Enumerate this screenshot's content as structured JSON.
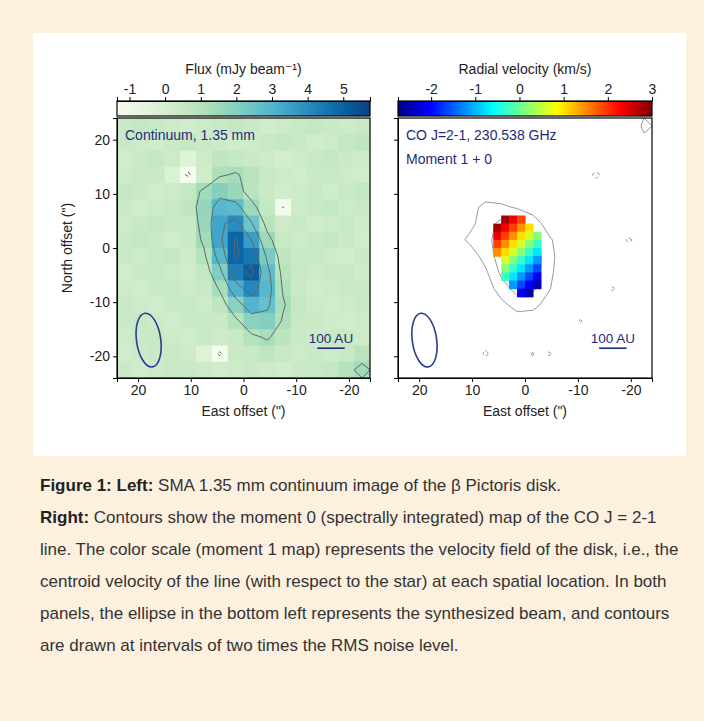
{
  "chart_data": [
    {
      "type": "heatmap",
      "color": "GnBu",
      "annotations": [
        "Continuum, 1.35 mm"
      ],
      "x_label": "East offset (\")",
      "y_label": "North offset (\")",
      "xlim": [
        24,
        -24
      ],
      "ylim": [
        -24,
        24
      ],
      "xticks": [
        20,
        10,
        0,
        -10,
        -20
      ],
      "yticks": [
        -20,
        -10,
        0,
        10,
        20
      ],
      "colorbar": {
        "label": "Flux (mJy beam⁻¹)",
        "range": [
          -1.35,
          5.75
        ],
        "ticks": [
          -1,
          0,
          1,
          2,
          3,
          4,
          5
        ]
      },
      "cells": {
        "x": [
          22.5,
          19.5,
          16.5,
          13.5,
          10.5,
          7.5,
          4.5,
          1.5,
          -1.5,
          -4.5,
          -7.5,
          -10.5,
          -13.5,
          -16.5,
          -19.5,
          -22.5
        ],
        "y": [
          22.5,
          19.5,
          16.5,
          13.5,
          10.5,
          7.5,
          4.5,
          1.5,
          -1.5,
          -4.5,
          -7.5,
          -10.5,
          -13.5,
          -16.5,
          -19.5,
          -22.5
        ],
        "values": [
          [
            0.4,
            0.6,
            0.5,
            0.3,
            0.2,
            0.3,
            0.5,
            0.6,
            0.4,
            0.2,
            0.3,
            0.5,
            0.6,
            0.4,
            0.3,
            0.5
          ],
          [
            0.5,
            0.3,
            0.2,
            0.4,
            0.6,
            0.4,
            0.3,
            0.2,
            0.3,
            0.5,
            0.6,
            0.4,
            0.2,
            0.3,
            0.6,
            0.7
          ],
          [
            0.2,
            0.4,
            0.6,
            0.3,
            -0.4,
            0.3,
            0.7,
            0.6,
            0.4,
            0.3,
            0.1,
            0.3,
            0.5,
            0.6,
            0.4,
            0.3
          ],
          [
            0.3,
            0.5,
            0.4,
            -0.2,
            -1.4,
            0.2,
            1.1,
            1.3,
            0.9,
            0.5,
            0.3,
            0.2,
            0.4,
            0.5,
            0.3,
            0.2
          ],
          [
            0.6,
            0.4,
            0.2,
            0.3,
            0.6,
            1.4,
            2.0,
            1.6,
            0.8,
            0.4,
            0.2,
            0.3,
            0.4,
            0.2,
            0.5,
            0.6
          ],
          [
            0.4,
            0.2,
            0.3,
            0.5,
            0.7,
            1.7,
            2.9,
            2.8,
            1.5,
            0.6,
            -1.25,
            0.3,
            0.5,
            0.6,
            0.3,
            0.4
          ],
          [
            0.3,
            0.5,
            0.6,
            0.4,
            0.5,
            1.6,
            3.4,
            4.0,
            2.5,
            0.9,
            0.3,
            0.4,
            0.2,
            0.3,
            0.5,
            0.3
          ],
          [
            0.5,
            0.6,
            0.4,
            0.2,
            0.4,
            1.4,
            3.4,
            4.9,
            3.6,
            1.5,
            0.5,
            0.3,
            0.4,
            0.6,
            0.4,
            0.2
          ],
          [
            0.4,
            0.3,
            0.5,
            0.6,
            0.3,
            1.0,
            2.9,
            4.9,
            4.5,
            2.2,
            0.7,
            0.4,
            0.5,
            0.3,
            0.2,
            0.4
          ],
          [
            0.2,
            0.4,
            0.5,
            0.3,
            0.2,
            0.6,
            2.1,
            4.3,
            5.1,
            2.7,
            0.9,
            0.5,
            0.3,
            0.4,
            0.5,
            0.3
          ],
          [
            0.3,
            0.2,
            0.4,
            0.5,
            0.3,
            0.4,
            1.3,
            3.1,
            4.1,
            2.9,
            1.1,
            0.4,
            0.2,
            0.3,
            0.4,
            0.5
          ],
          [
            0.5,
            0.3,
            0.2,
            0.4,
            0.5,
            0.3,
            0.7,
            1.9,
            3.0,
            2.6,
            1.3,
            0.6,
            0.3,
            0.2,
            0.3,
            0.4
          ],
          [
            0.4,
            0.5,
            0.3,
            0.2,
            0.4,
            0.5,
            0.4,
            1.0,
            1.9,
            2.0,
            1.1,
            0.5,
            0.4,
            0.3,
            0.2,
            0.3
          ],
          [
            0.3,
            0.4,
            0.5,
            0.3,
            0.2,
            0.4,
            0.3,
            0.5,
            1.0,
            1.3,
            0.8,
            0.4,
            0.3,
            0.5,
            0.4,
            0.3
          ],
          [
            0.2,
            0.3,
            0.4,
            0.5,
            0.3,
            -0.3,
            -1.4,
            0.4,
            0.5,
            0.7,
            0.5,
            0.3,
            0.4,
            0.3,
            0.5,
            0.9
          ],
          [
            0.4,
            0.2,
            0.3,
            0.4,
            0.5,
            0.3,
            0.2,
            0.3,
            0.4,
            0.3,
            0.2,
            0.4,
            0.5,
            0.6,
            1.0,
            1.4
          ]
        ],
        "levels": [
          -1.2,
          1.2,
          2.4,
          3.6,
          4.8
        ]
      },
      "beam": {
        "x": 18,
        "y": -17,
        "major": 10,
        "minor": 4.6,
        "pa": 8
      },
      "scale_bar": {
        "label": "100 AU",
        "length": 5.2,
        "x": -14,
        "y": -18.5
      }
    },
    {
      "type": "moment_map",
      "color": "jet",
      "tick_labels": "x",
      "annotations": [
        "CO J=2-1, 230.538 GHz",
        "Moment 1 + 0"
      ],
      "x_label": "East offset (\")",
      "xlim": [
        24,
        -24
      ],
      "ylim": [
        -24,
        24
      ],
      "xticks": [
        20,
        10,
        0,
        -10,
        -20
      ],
      "yticks": [
        -20,
        -10,
        0,
        10,
        20
      ],
      "colorbar": {
        "label": "Radial velocity (km/s)",
        "range": [
          -2.75,
          3.0
        ],
        "ticks": [
          -2,
          -1,
          0,
          1,
          2,
          3
        ]
      },
      "moment0": {
        "x": [
          22.5,
          19.5,
          16.5,
          13.5,
          10.5,
          7.5,
          4.5,
          1.5,
          -1.5,
          -4.5,
          -7.5,
          -10.5,
          -13.5,
          -16.5,
          -19.5,
          -22.5
        ],
        "y": [
          22.5,
          19.5,
          16.5,
          13.5,
          10.5,
          7.5,
          4.5,
          1.5,
          -1.5,
          -4.5,
          -7.5,
          -10.5,
          -13.5,
          -16.5,
          -19.5,
          -22.5
        ],
        "values": [
          [
            0.3,
            -0.5,
            0.2,
            0.6,
            -0.3,
            0.1,
            0.4,
            -0.2,
            0.5,
            -0.4,
            0.2,
            0.3,
            0.1,
            -0.3,
            0.8,
            2.3
          ],
          [
            -0.2,
            0.4,
            0.1,
            -0.3,
            0.5,
            0.2,
            -0.1,
            0.3,
            -0.4,
            0.2,
            0.5,
            -0.2,
            0.3,
            0.4,
            1.0,
            1.6
          ],
          [
            0.5,
            0.1,
            -0.4,
            0.3,
            0.2,
            -0.2,
            0.4,
            0.1,
            0.3,
            -0.1,
            -0.4,
            0.2,
            -0.3,
            0.1,
            0.4,
            0.2
          ],
          [
            0.1,
            -0.3,
            0.3,
            0.4,
            -0.1,
            0.5,
            0.2,
            -0.3,
            0.1,
            0.4,
            0.2,
            -0.9,
            -2.4,
            -0.6,
            0.1,
            0.3
          ],
          [
            -0.4,
            0.2,
            0.5,
            0.1,
            0.3,
            0.8,
            0.6,
            0.2,
            0.4,
            0.1,
            -0.2,
            0.3,
            -0.5,
            0.2,
            -0.3,
            0.1
          ],
          [
            0.2,
            0.4,
            -0.2,
            0.3,
            1.2,
            2.6,
            2.4,
            1.8,
            0.9,
            0.3,
            0.1,
            -0.4,
            0.2,
            0.3,
            0.1,
            -0.2
          ],
          [
            0.3,
            -0.1,
            0.2,
            0.6,
            1.4,
            3.0,
            4.6,
            4.8,
            3.2,
            1.0,
            0.2,
            0.1,
            -0.3,
            0.2,
            0.4,
            0.1
          ],
          [
            -0.3,
            0.2,
            0.4,
            1.0,
            2.4,
            3.2,
            5.2,
            6.0,
            4.8,
            2.4,
            0.6,
            -0.2,
            0.1,
            0.3,
            -2.4,
            -0.8
          ],
          [
            0.2,
            0.4,
            -0.1,
            0.3,
            0.8,
            2.8,
            5.0,
            6.2,
            5.4,
            2.8,
            0.7,
            0.3,
            0.2,
            -0.4,
            0.1,
            0.3
          ],
          [
            0.1,
            -0.2,
            0.3,
            0.2,
            0.4,
            1.6,
            4.4,
            5.8,
            5.2,
            2.6,
            0.5,
            0.1,
            -0.3,
            0.2,
            0.4,
            -0.1
          ],
          [
            -0.3,
            0.2,
            0.1,
            0.4,
            0.1,
            0.8,
            3.0,
            4.8,
            4.4,
            2.2,
            0.4,
            0.2,
            0.3,
            -2.3,
            -0.5,
            0.2
          ],
          [
            0.4,
            0.1,
            -0.3,
            0.2,
            0.3,
            0.4,
            1.4,
            2.8,
            2.6,
            1.2,
            0.3,
            -0.1,
            0.2,
            0.1,
            0.3,
            0.2
          ],
          [
            0.2,
            0.3,
            0.1,
            -0.2,
            0.4,
            0.2,
            0.5,
            0.9,
            0.8,
            0.4,
            -0.8,
            -2.2,
            0.1,
            0.3,
            0.2,
            0.4
          ],
          [
            0.1,
            -0.2,
            0.4,
            0.3,
            0.1,
            -0.6,
            0.2,
            0.4,
            -0.3,
            0.1,
            0.3,
            0.2,
            0.5,
            0.1,
            -0.2,
            0.3
          ],
          [
            0.3,
            0.2,
            0.1,
            -0.4,
            0.2,
            -2.4,
            -0.3,
            0.6,
            2.2,
            -2.3,
            0.1,
            0.4,
            0.2,
            0.3,
            0.1,
            0.2
          ],
          [
            0.2,
            0.4,
            0.3,
            0.1,
            0.3,
            -0.4,
            0.2,
            0.5,
            0.8,
            -0.3,
            0.2,
            0.1,
            0.3,
            0.4,
            0.2,
            0.1
          ]
        ],
        "levels": [
          -2,
          2,
          4
        ]
      },
      "moment1": {
        "x": [
          5.25,
          3.75,
          2.25,
          0.75,
          -0.75,
          -2.25
        ],
        "y": [
          5.25,
          3.75,
          2.25,
          0.75,
          -0.75,
          -2.25,
          -3.75,
          -5.25,
          -6.75,
          -8.25
        ],
        "values": [
          [
            null,
            2.8,
            2.35,
            1.91,
            null,
            null
          ],
          [
            2.8,
            2.36,
            1.91,
            1.47,
            1.03,
            null
          ],
          [
            2.36,
            1.92,
            1.47,
            1.03,
            0.59,
            0.15
          ],
          [
            1.92,
            1.48,
            1.03,
            0.59,
            0.15,
            -0.29
          ],
          [
            1.48,
            1.04,
            0.59,
            0.15,
            -0.29,
            -0.73
          ],
          [
            null,
            0.6,
            0.15,
            -0.29,
            -0.73,
            -1.17
          ],
          [
            null,
            0.16,
            -0.29,
            -0.73,
            -1.17,
            -1.61
          ],
          [
            null,
            -0.28,
            -0.73,
            -1.17,
            -1.61,
            -2.05
          ],
          [
            null,
            null,
            -1.17,
            -1.61,
            -2.05,
            -2.49
          ],
          [
            null,
            null,
            null,
            -2.06,
            -2.5,
            null
          ]
        ]
      },
      "beam": {
        "x": 19,
        "y": -17,
        "major": 10,
        "minor": 4.6,
        "pa": 8
      },
      "scale_bar": {
        "label": "100 AU",
        "length": 5.2,
        "x": -14,
        "y": -18.5
      }
    }
  ],
  "caption": {
    "figure": "Figure 1:",
    "left_label": "Left:",
    "left_text": "SMA 1.35 mm continuum image of the β Pictoris disk.",
    "right_label": "Right:",
    "right_text": "Contours show the moment 0 (spectrally integrated) map of the CO J = 2-1 line. The color scale (moment 1 map) represents the velocity field of the disk, i.e., the centroid velocity of the line (with respect to the star) at each spatial location. In both panels, the ellipse in the bottom left represents the synthesized beam, and contours are drawn at intervals of two times the RMS noise level."
  }
}
